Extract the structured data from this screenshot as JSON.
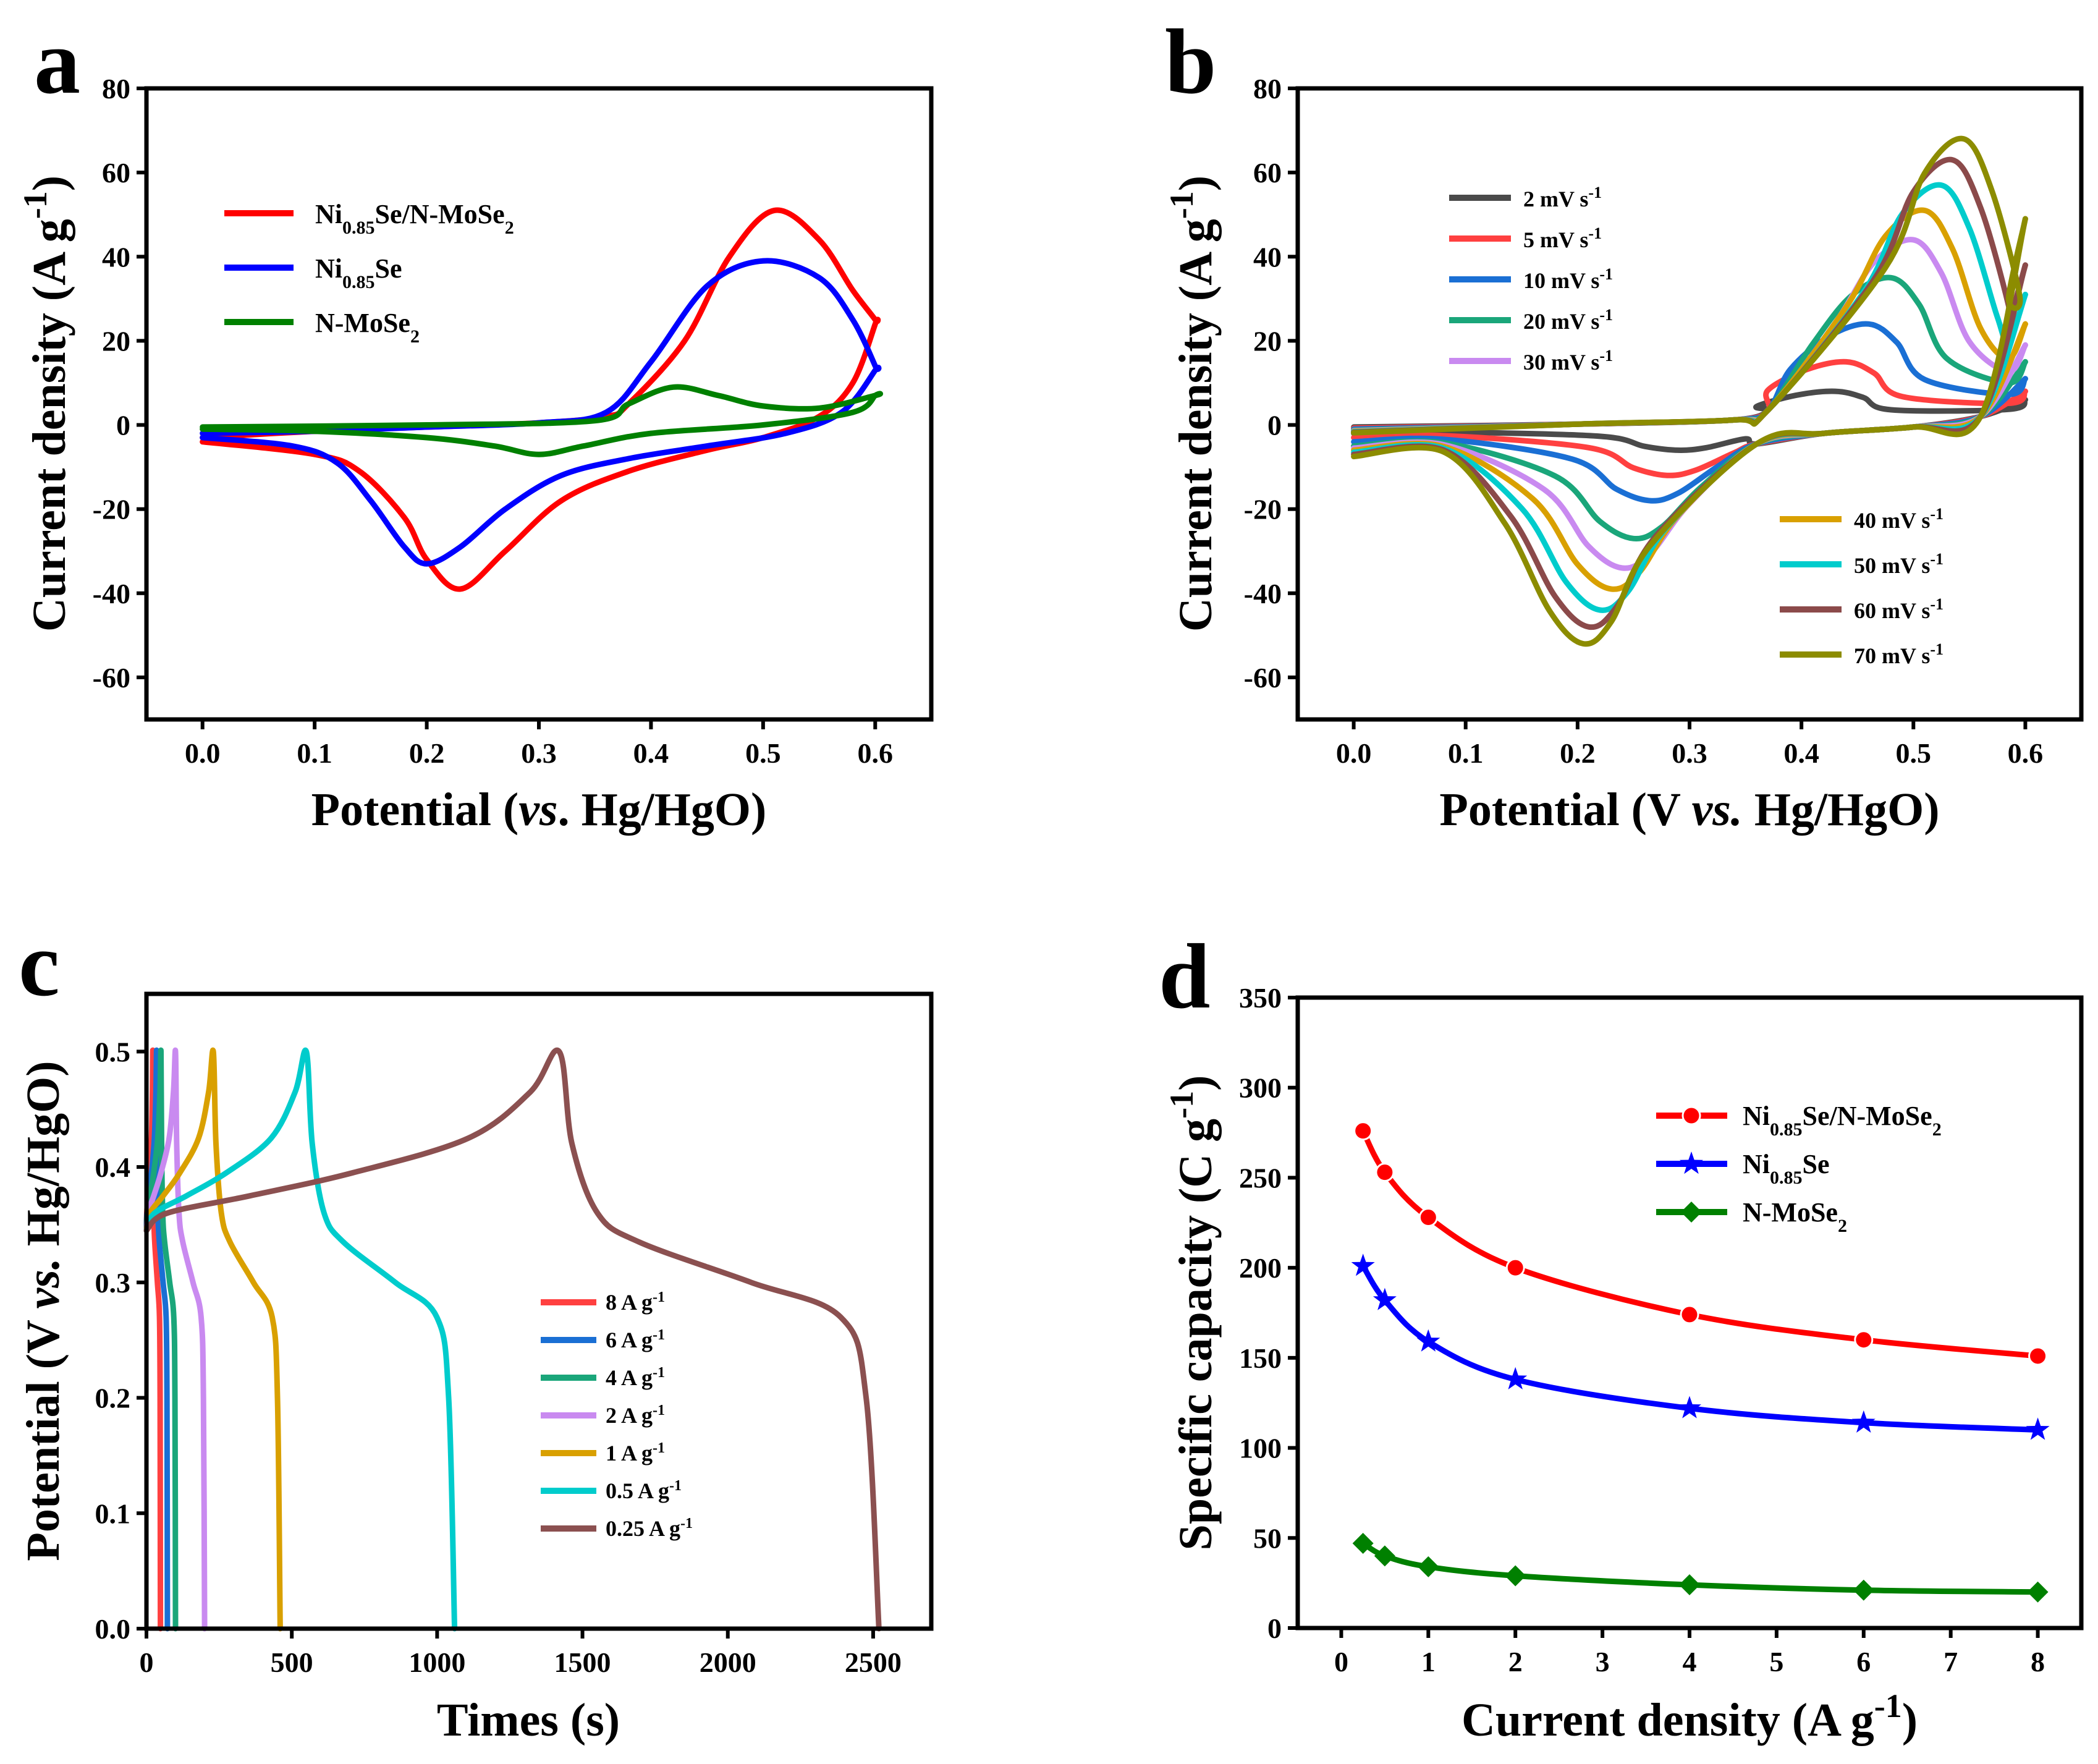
{
  "chart_data": [
    {
      "panel": "a",
      "type": "line",
      "xlabel": "Potential (vs. Hg/HgO)",
      "ylabel": "Current density (A g-1)",
      "xlim": [
        -0.05,
        0.65
      ],
      "ylim": [
        -70,
        80
      ],
      "xticks": [
        0.0,
        0.1,
        0.2,
        0.3,
        0.4,
        0.5,
        0.6
      ],
      "xtick_labels": [
        "0.0",
        "0.1",
        "0.2",
        "0.3",
        "0.4",
        "0.5",
        "0.6"
      ],
      "yticks": [
        -60,
        -40,
        -20,
        0,
        20,
        40,
        60,
        80
      ],
      "ytick_labels": [
        "-60",
        "-40",
        "-20",
        "0",
        "20",
        "40",
        "60",
        "80"
      ],
      "legend_position": "top-left",
      "series": [
        {
          "name": "Ni0.85Se/N-MoSe2",
          "base": "Ni",
          "sub": "0.85",
          "mid": "Se/N-MoSe",
          "sub2": "2",
          "color": "#ff0000",
          "x": [
            0.0,
            0.1,
            0.14,
            0.18,
            0.2,
            0.23,
            0.27,
            0.32,
            0.38,
            0.45,
            0.5,
            0.55,
            0.58,
            0.6,
            0.6,
            0.58,
            0.55,
            0.51,
            0.47,
            0.43,
            0.38,
            0.36,
            0.3,
            0.2,
            0.1,
            0.0
          ],
          "y": [
            -4,
            -7,
            -11,
            -22,
            -32,
            -39,
            -30,
            -18,
            -11,
            -6,
            -3,
            2,
            10,
            24,
            25,
            32,
            44,
            51,
            40,
            20,
            5,
            2,
            0.5,
            -0.5,
            -1.5,
            -3
          ]
        },
        {
          "name": "Ni0.85Se",
          "base": "Ni",
          "sub": "0.85",
          "mid": "Se",
          "sub2": "",
          "color": "#0000ff",
          "x": [
            0.0,
            0.08,
            0.12,
            0.15,
            0.18,
            0.2,
            0.23,
            0.27,
            0.32,
            0.38,
            0.45,
            0.52,
            0.57,
            0.6,
            0.6,
            0.58,
            0.55,
            0.5,
            0.45,
            0.4,
            0.36,
            0.3,
            0.2,
            0.1,
            0.0
          ],
          "y": [
            -3,
            -5,
            -9,
            -18,
            -29,
            -33,
            -29,
            -20,
            -12,
            -8,
            -5,
            -2,
            3,
            13,
            14,
            25,
            35,
            39,
            33,
            15,
            3,
            0.5,
            -0.5,
            -1.5,
            -2
          ]
        },
        {
          "name": "N-MoSe2",
          "base": "N-MoSe",
          "sub": "2",
          "mid": "",
          "sub2": "",
          "color": "#008000",
          "x": [
            0.0,
            0.1,
            0.2,
            0.26,
            0.3,
            0.34,
            0.4,
            0.5,
            0.58,
            0.6,
            0.6,
            0.55,
            0.5,
            0.46,
            0.42,
            0.38,
            0.35,
            0.2,
            0.0
          ],
          "y": [
            -1,
            -1.5,
            -3,
            -5,
            -7,
            -5,
            -2,
            0,
            3,
            7,
            7,
            4,
            4.5,
            7,
            9,
            5,
            1,
            0,
            -0.5
          ]
        }
      ]
    },
    {
      "panel": "b",
      "type": "line",
      "xlabel": "Potential (V vs. Hg/HgO)",
      "ylabel": "Current density (A g-1)",
      "xlim": [
        -0.05,
        0.65
      ],
      "ylim": [
        -70,
        80
      ],
      "xticks": [
        0.0,
        0.1,
        0.2,
        0.3,
        0.4,
        0.5,
        0.6
      ],
      "xtick_labels": [
        "0.0",
        "0.1",
        "0.2",
        "0.3",
        "0.4",
        "0.5",
        "0.6"
      ],
      "yticks": [
        -60,
        -40,
        -20,
        0,
        20,
        40,
        60,
        80
      ],
      "ytick_labels": [
        "-60",
        "-40",
        "-20",
        "0",
        "20",
        "40",
        "60",
        "80"
      ],
      "legend_position": "top-left and bottom-right",
      "series": [
        {
          "name": "2 mV s-1",
          "rate": "2 mV s",
          "sup": "-1",
          "color": "#4a4a4a",
          "peak_x": 0.43,
          "peak_y": 8,
          "valley_x": 0.29,
          "valley_y": -6,
          "end_y": 6,
          "start_y": -2
        },
        {
          "name": "5 mV s-1",
          "rate": "5 mV s",
          "sup": "-1",
          "color": "#ff4040",
          "peak_x": 0.44,
          "peak_y": 15,
          "valley_x": 0.28,
          "valley_y": -12,
          "end_y": 8,
          "start_y": -3
        },
        {
          "name": "10 mV s-1",
          "rate": "10 mV s",
          "sup": "-1",
          "color": "#1a6fd4",
          "peak_x": 0.46,
          "peak_y": 24,
          "valley_x": 0.265,
          "valley_y": -18,
          "end_y": 11,
          "start_y": -4
        },
        {
          "name": "20 mV s-1",
          "rate": "20 mV s",
          "sup": "-1",
          "color": "#1aa67a",
          "peak_x": 0.48,
          "peak_y": 35,
          "valley_x": 0.25,
          "valley_y": -27,
          "end_y": 15,
          "start_y": -5
        },
        {
          "name": "30 mV s-1",
          "rate": "30 mV s",
          "sup": "-1",
          "color": "#c98af0",
          "peak_x": 0.5,
          "peak_y": 44,
          "valley_x": 0.24,
          "valley_y": -34,
          "end_y": 19,
          "start_y": -5.5
        },
        {
          "name": "40 mV s-1",
          "rate": "40 mV s",
          "sup": "-1",
          "color": "#d9a000",
          "peak_x": 0.51,
          "peak_y": 51,
          "valley_x": 0.23,
          "valley_y": -39,
          "end_y": 24,
          "start_y": -6
        },
        {
          "name": "50 mV s-1",
          "rate": "50 mV s",
          "sup": "-1",
          "color": "#00cccc",
          "peak_x": 0.525,
          "peak_y": 57,
          "valley_x": 0.22,
          "valley_y": -44,
          "end_y": 31,
          "start_y": -6.5
        },
        {
          "name": "60 mV s-1",
          "rate": "60 mV s",
          "sup": "-1",
          "color": "#8b4a4a",
          "peak_x": 0.535,
          "peak_y": 63,
          "valley_x": 0.21,
          "valley_y": -48,
          "end_y": 38,
          "start_y": -7
        },
        {
          "name": "70 mV s-1",
          "rate": "70 mV s",
          "sup": "-1",
          "color": "#8c8c00",
          "peak_x": 0.545,
          "peak_y": 68,
          "valley_x": 0.205,
          "valley_y": -52,
          "end_y": 49,
          "start_y": -7.5
        }
      ]
    },
    {
      "panel": "c",
      "type": "line",
      "xlabel": "Times (s)",
      "ylabel": "Potential (V vs. Hg/HgO)",
      "xlim": [
        0,
        2700
      ],
      "ylim": [
        0,
        0.55
      ],
      "xticks": [
        0,
        500,
        1000,
        1500,
        2000,
        2500
      ],
      "xtick_labels": [
        "0",
        "500",
        "1000",
        "1500",
        "2000",
        "2500"
      ],
      "yticks": [
        0.0,
        0.1,
        0.2,
        0.3,
        0.4,
        0.5
      ],
      "ytick_labels": [
        "0.0",
        "0.1",
        "0.2",
        "0.3",
        "0.4",
        "0.5"
      ],
      "legend_position": "bottom-center",
      "series": [
        {
          "name": "8 A g-1",
          "rate": "8 A g",
          "sup": "-1",
          "color": "#ff4040",
          "charge_end": 22,
          "discharge_end": 48
        },
        {
          "name": "6 A g-1",
          "rate": "6 A g",
          "sup": "-1",
          "color": "#1a6fd4",
          "charge_end": 35,
          "discharge_end": 72
        },
        {
          "name": "4 A g-1",
          "rate": "4 A g",
          "sup": "-1",
          "color": "#1aa67a",
          "charge_end": 50,
          "discharge_end": 100
        },
        {
          "name": "2 A g-1",
          "rate": "2 A g",
          "sup": "-1",
          "color": "#c98af0",
          "charge_end": 100,
          "discharge_end": 200
        },
        {
          "name": "1 A g-1",
          "rate": "1 A g",
          "sup": "-1",
          "color": "#d9a000",
          "charge_end": 230,
          "discharge_end": 460
        },
        {
          "name": "0.5 A g-1",
          "rate": "0.5 A g",
          "sup": "-1",
          "color": "#00cccc",
          "charge_end": 550,
          "discharge_end": 1060
        },
        {
          "name": "0.25 A g-1",
          "rate": "0.25 A g",
          "sup": "-1",
          "color": "#8b5050",
          "charge_end": 1420,
          "discharge_end": 2520
        }
      ]
    },
    {
      "panel": "d",
      "type": "line",
      "xlabel": "Current density (A g-1)",
      "ylabel": "Specific capacity (C g-1)",
      "xlim": [
        -0.5,
        8.5
      ],
      "ylim": [
        0,
        350
      ],
      "xticks": [
        0,
        1,
        2,
        3,
        4,
        5,
        6,
        7,
        8
      ],
      "xtick_labels": [
        "0",
        "1",
        "2",
        "3",
        "4",
        "5",
        "6",
        "7",
        "8"
      ],
      "yticks": [
        0,
        50,
        100,
        150,
        200,
        250,
        300,
        350
      ],
      "ytick_labels": [
        "0",
        "50",
        "100",
        "150",
        "200",
        "250",
        "300",
        "350"
      ],
      "legend_position": "top-right",
      "x": [
        0.25,
        0.5,
        1,
        2,
        4,
        6,
        8
      ],
      "series": [
        {
          "name": "Ni0.85Se/N-MoSe2",
          "base": "Ni",
          "sub": "0.85",
          "mid": "Se/N-MoSe",
          "sub2": "2",
          "color": "#ff0000",
          "marker": "circle",
          "values": [
            276,
            253,
            228,
            200,
            174,
            160,
            151
          ]
        },
        {
          "name": "Ni0.85Se",
          "base": "Ni",
          "sub": "0.85",
          "mid": "Se",
          "sub2": "",
          "color": "#0000ff",
          "marker": "star",
          "values": [
            201,
            182,
            159,
            138,
            122,
            114,
            110
          ]
        },
        {
          "name": "N-MoSe2",
          "base": "N-MoSe",
          "sub": "2",
          "mid": "",
          "sub2": "",
          "color": "#008000",
          "marker": "diamond",
          "values": [
            47,
            40,
            34,
            29,
            24,
            21,
            20
          ]
        }
      ]
    }
  ],
  "panel_letters": [
    "a",
    "b",
    "c",
    "d"
  ],
  "axis_title_parts": {
    "a_y_main": "Current density (A g",
    "a_y_sup": "-1",
    "a_y_end": ")",
    "a_x_pre": "Potential (",
    "a_x_it": "vs",
    "a_x_post": ". Hg/HgO)",
    "b_y_main": "Current density (A g",
    "b_y_sup": "-1",
    "b_y_end": ")",
    "b_x_pre": "Potential (V ",
    "b_x_it": "vs.",
    "b_x_post": " Hg/HgO)",
    "c_y_pre": "Potential (V ",
    "c_y_it": "vs.",
    "c_y_post": " Hg/HgO)",
    "c_x": "Times (s)",
    "d_y_main": "Specific capacity (C g",
    "d_y_sup": "-1",
    "d_y_end": ")",
    "d_x_main": "Current density (A g",
    "d_x_sup": "-1",
    "d_x_end": ")"
  }
}
